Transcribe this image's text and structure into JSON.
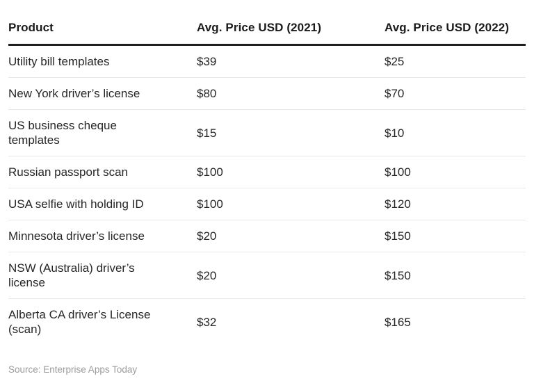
{
  "chart_data": {
    "type": "table",
    "title": "",
    "columns": [
      "Product",
      "Avg. Price USD (2021)",
      "Avg. Price USD (2022)"
    ],
    "rows": [
      [
        "Utility bill templates",
        "$39",
        "$25"
      ],
      [
        "New York driver’s license",
        "$80",
        "$70"
      ],
      [
        "US business cheque templates",
        "$15",
        "$10"
      ],
      [
        "Russian passport scan",
        "$100",
        "$100"
      ],
      [
        "USA selfie with holding ID",
        "$100",
        "$120"
      ],
      [
        "Minnesota driver’s license",
        "$20",
        "$150"
      ],
      [
        "NSW (Australia) driver’s license",
        "$20",
        "$150"
      ],
      [
        "Alberta CA driver’s License (scan)",
        "$32",
        "$165"
      ]
    ],
    "layout": {
      "grid": "horizontal row separators only",
      "header_rule_color": "#1f1f1f",
      "row_rule_color": "#e8e8e8",
      "background": "#ffffff"
    }
  },
  "source": "Source: Enterprise Apps Today"
}
